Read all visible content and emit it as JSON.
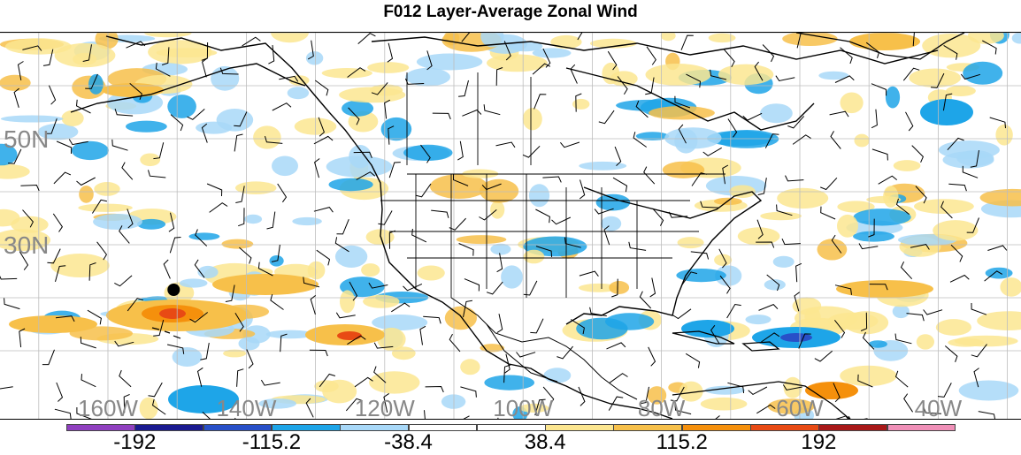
{
  "title": "F012 Layer-Average Zonal Wind",
  "lat_labels": [
    {
      "text": "50N",
      "lat": 50
    },
    {
      "text": "30N",
      "lat": 30
    }
  ],
  "lon_labels": [
    {
      "text": "160W",
      "lon": -160
    },
    {
      "text": "140W",
      "lon": -140
    },
    {
      "text": "120W",
      "lon": -120
    },
    {
      "text": "100W",
      "lon": -100
    },
    {
      "text": "80W",
      "lon": -80
    },
    {
      "text": "60W",
      "lon": -60
    },
    {
      "text": "40W",
      "lon": -40
    }
  ],
  "colorbar": {
    "colors": [
      "#9040c0",
      "#1a1a90",
      "#2850c8",
      "#1ea5e8",
      "#a8d8f8",
      "#ffffff",
      "#ffffff",
      "#fce690",
      "#f7c04a",
      "#f5900c",
      "#e84a14",
      "#a81818",
      "#f090b8"
    ],
    "tick_labels": [
      "-192",
      "-115.2",
      "-38.4",
      "38.4",
      "115.2",
      "192"
    ],
    "tick_positions": [
      1,
      3,
      5,
      7,
      9,
      11
    ]
  },
  "marker": {
    "label": "",
    "lon": -150.5,
    "lat": 21.5
  },
  "colors": {
    "coast": "#000000",
    "grid": "#bdbdbd",
    "light_pos": "#fce690",
    "mid_pos": "#f7c04a",
    "strong_pos": "#f5900c",
    "very_strong_pos": "#e84a14",
    "light_neg": "#a8d8f8",
    "mid_neg": "#1ea5e8",
    "strong_neg": "#2850c8"
  }
}
